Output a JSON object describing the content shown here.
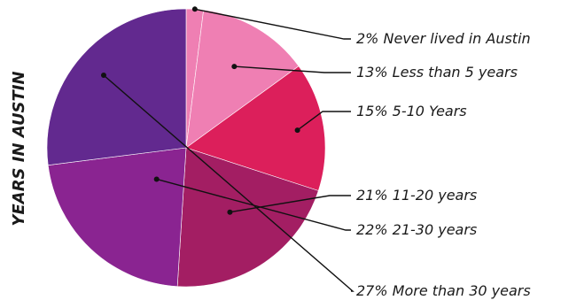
{
  "chart_data": {
    "type": "pie",
    "title": "YEARS IN AUSTIN",
    "slices": [
      {
        "label": "2% Never lived in Austin",
        "category": "Never lived in Austin",
        "value": 2,
        "color": "#ef7fb3"
      },
      {
        "label": "13% Less than 5 years",
        "category": "Less than 5 years",
        "value": 13,
        "color": "#ef7fb3"
      },
      {
        "label": "15% 5-10 Years",
        "category": "5-10 Years",
        "value": 15,
        "color": "#dc1f5b"
      },
      {
        "label": "21% 11-20 years",
        "category": "11-20 years",
        "value": 21,
        "color": "#a31e63"
      },
      {
        "label": "22% 21-30 years",
        "category": "21-30 years",
        "value": 22,
        "color": "#8a2491"
      },
      {
        "label": "27% More than 30 years",
        "category": "More than 30 years",
        "value": 27,
        "color": "#62298f"
      }
    ],
    "legend": "none"
  }
}
